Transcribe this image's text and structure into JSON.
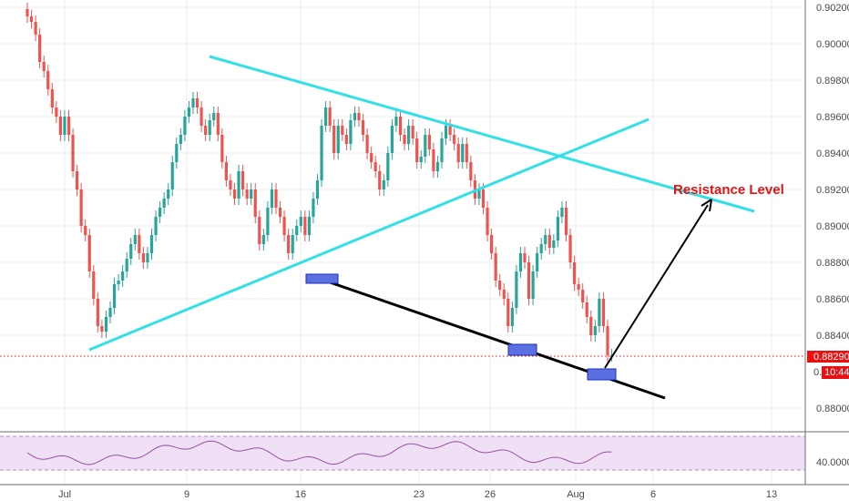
{
  "chart_data": [
    {
      "type": "candlestick",
      "title": "",
      "xlabel": "",
      "ylabel": "",
      "x_ticks": [
        "Jul",
        "9",
        "16",
        "23",
        "26",
        "Aug",
        "6",
        "13"
      ],
      "y_ticks": [
        "0.90200",
        "0.90000",
        "0.89800",
        "0.89600",
        "0.89400",
        "0.89200",
        "0.89000",
        "0.88800",
        "0.88600",
        "0.88400",
        "0.88000"
      ],
      "ylim": [
        0.8788,
        0.9024
      ],
      "grid": true,
      "close_series": [
        0.9015,
        0.9012,
        0.9005,
        0.899,
        0.8985,
        0.8975,
        0.8965,
        0.896,
        0.895,
        0.896,
        0.895,
        0.893,
        0.892,
        0.89,
        0.8895,
        0.8875,
        0.886,
        0.8845,
        0.8842,
        0.885,
        0.8855,
        0.8868,
        0.887,
        0.8875,
        0.8882,
        0.889,
        0.8895,
        0.8885,
        0.888,
        0.8885,
        0.8895,
        0.8905,
        0.891,
        0.8915,
        0.892,
        0.8935,
        0.8945,
        0.895,
        0.896,
        0.8965,
        0.897,
        0.8965,
        0.8955,
        0.895,
        0.8958,
        0.8962,
        0.895,
        0.8935,
        0.8925,
        0.892,
        0.8915,
        0.893,
        0.892,
        0.8915,
        0.892,
        0.8905,
        0.889,
        0.8895,
        0.891,
        0.892,
        0.891,
        0.8905,
        0.8895,
        0.8885,
        0.8895,
        0.89,
        0.8905,
        0.8895,
        0.8905,
        0.8915,
        0.8925,
        0.8955,
        0.8965,
        0.8955,
        0.894,
        0.8955,
        0.895,
        0.8945,
        0.8958,
        0.8962,
        0.8958,
        0.895,
        0.894,
        0.8935,
        0.893,
        0.892,
        0.8925,
        0.894,
        0.8955,
        0.896,
        0.895,
        0.8945,
        0.8955,
        0.8948,
        0.8935,
        0.8938,
        0.895,
        0.8942,
        0.893,
        0.8935,
        0.8948,
        0.8955,
        0.895,
        0.8945,
        0.8935,
        0.8945,
        0.8935,
        0.8925,
        0.8915,
        0.892,
        0.891,
        0.8895,
        0.8885,
        0.887,
        0.8865,
        0.886,
        0.8845,
        0.8855,
        0.8875,
        0.8885,
        0.888,
        0.886,
        0.8875,
        0.8885,
        0.889,
        0.8895,
        0.8888,
        0.8892,
        0.8905,
        0.891,
        0.8895,
        0.888,
        0.8868,
        0.8865,
        0.8858,
        0.885,
        0.884,
        0.8845,
        0.886,
        0.8845,
        0.8829,
        0.8829
      ],
      "series": [
        {
          "values": [
            0.8829
          ]
        }
      ],
      "annotations": [
        "Resistance Level"
      ],
      "current_price_tag": "0.88290",
      "timer_tag": "10:44",
      "partial_price_tag": "0.",
      "rsi_panel": {
        "y_ticks": [
          "40.0000"
        ]
      },
      "colors": {
        "up": "#26a69a",
        "down": "#ef5350",
        "trendline": "#33e0e8",
        "support": "#000000",
        "marker": "#5a6fe0",
        "annotation": "#e81010",
        "rsi_line": "#9c4fa8",
        "rsi_band": "#efe0f5"
      }
    }
  ]
}
